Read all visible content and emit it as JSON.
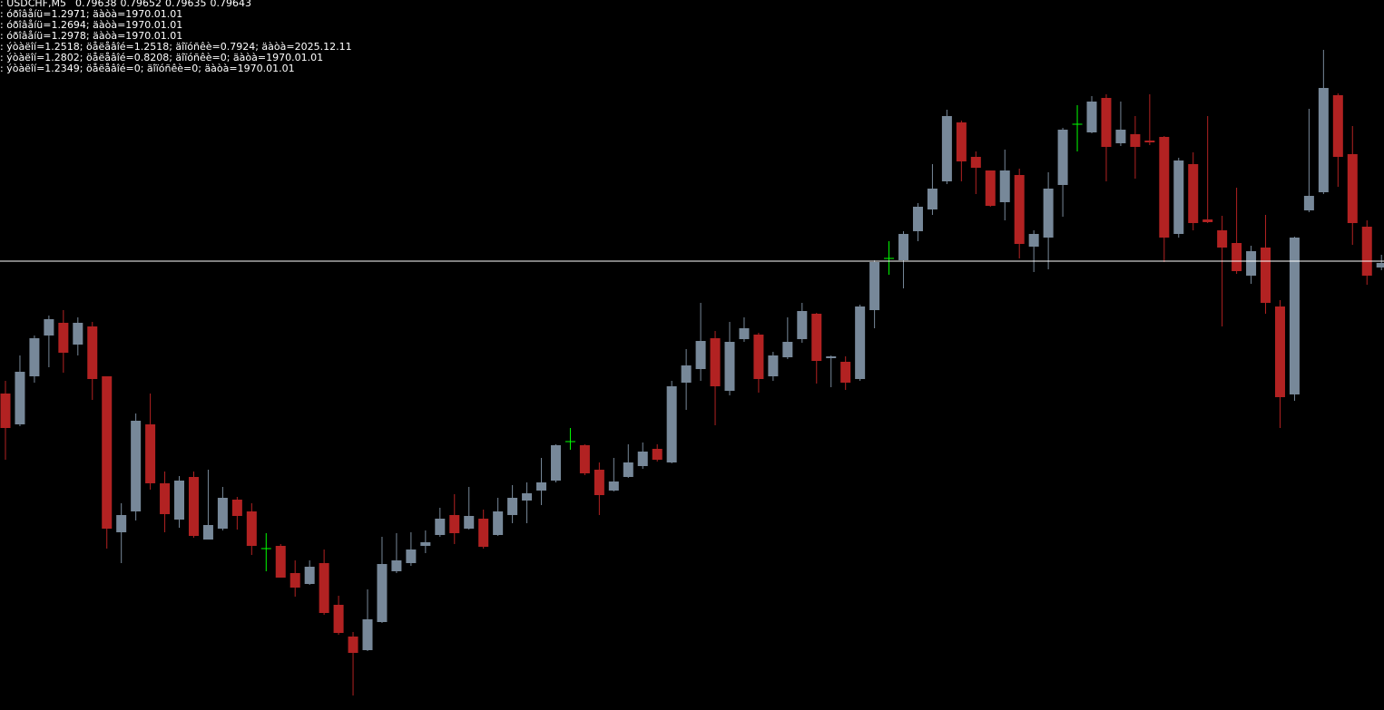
{
  "chart_data": {
    "type": "candlestick",
    "symbol": ": USDCHF,M5",
    "annotations": [
      ": óðîâåíü=1.2971; äàòà=1970.01.01",
      ": óðîâåíü=1.2694; äàòà=1970.01.01",
      ": óðîâåíü=1.2978; äàòà=1970.01.01",
      ": ýòàëîí=1.2518; öåëåâîé=1.2518; äîïóñêè=0.7924; äàòà=2025.12.11",
      ": ýòàëîí=1.2802; öåëåâîé=0.8208; äîïóñêè=0; äàòà=1970.01.01",
      ": ýòàëîí=1.2349; öåëåâîé=0; äîïóñêè=0; äàòà=1970.01.01"
    ],
    "open": [
      0.79499,
      0.79465,
      0.79518,
      0.79563,
      0.79577,
      0.79553,
      0.79573,
      0.79518,
      0.79346,
      0.79369,
      0.79465,
      0.794,
      0.7936,
      0.79407,
      0.79338,
      0.7935,
      0.79382,
      0.79369,
      0.79328,
      0.79331,
      0.79301,
      0.79289,
      0.79312,
      0.79266,
      0.79231,
      0.79216,
      0.79247,
      0.79303,
      0.79312,
      0.79331,
      0.79343,
      0.79365,
      0.7935,
      0.79361,
      0.79343,
      0.79365,
      0.79381,
      0.79392,
      0.79403,
      0.79446,
      0.79442,
      0.79415,
      0.79392,
      0.79407,
      0.79419,
      0.79438,
      0.79423,
      0.79511,
      0.79526,
      0.7956,
      0.79502,
      0.79559,
      0.79564,
      0.79518,
      0.79539,
      0.79559,
      0.79587,
      0.79538,
      0.79534,
      0.79515,
      0.79591,
      0.79648,
      0.79646,
      0.79678,
      0.79702,
      0.79733,
      0.79798,
      0.7976,
      0.79745,
      0.7971,
      0.7974,
      0.79661,
      0.79671,
      0.79729,
      0.79796,
      0.79787,
      0.79825,
      0.79775,
      0.79785,
      0.79778,
      0.79782,
      0.79675,
      0.79752,
      0.79691,
      0.79679,
      0.79665,
      0.79629,
      0.7966,
      0.79595,
      0.79498,
      0.79701,
      0.79721,
      0.79828,
      0.79763,
      0.79683,
      0.79638
    ],
    "high": [
      0.79513,
      0.79541,
      0.79563,
      0.79585,
      0.79591,
      0.79583,
      0.79578,
      0.79518,
      0.79378,
      0.79477,
      0.79499,
      0.79413,
      0.79408,
      0.79413,
      0.79415,
      0.79396,
      0.79385,
      0.79378,
      0.79345,
      0.79333,
      0.79315,
      0.79315,
      0.79327,
      0.79276,
      0.79236,
      0.79283,
      0.79341,
      0.79345,
      0.79346,
      0.79348,
      0.79373,
      0.79388,
      0.79396,
      0.79371,
      0.79384,
      0.79398,
      0.79401,
      0.79428,
      0.79443,
      0.79461,
      0.79443,
      0.79423,
      0.79428,
      0.79443,
      0.79445,
      0.79443,
      0.79513,
      0.79548,
      0.79599,
      0.79568,
      0.79578,
      0.79583,
      0.79566,
      0.79545,
      0.79583,
      0.79599,
      0.79588,
      0.79541,
      0.7954,
      0.79597,
      0.79646,
      0.79667,
      0.79678,
      0.79709,
      0.79752,
      0.79812,
      0.798,
      0.79766,
      0.79745,
      0.79768,
      0.79747,
      0.79679,
      0.79743,
      0.79792,
      0.79817,
      0.79827,
      0.79829,
      0.79821,
      0.79805,
      0.79829,
      0.79783,
      0.79759,
      0.79765,
      0.79805,
      0.79695,
      0.79726,
      0.79662,
      0.79696,
      0.79602,
      0.79672,
      0.79813,
      0.79878,
      0.7983,
      0.79794,
      0.7969,
      0.79652
    ],
    "low": [
      0.79426,
      0.79463,
      0.79511,
      0.79528,
      0.79522,
      0.79541,
      0.79492,
      0.79328,
      0.79312,
      0.79359,
      0.79393,
      0.79346,
      0.79351,
      0.7934,
      0.79338,
      0.79348,
      0.79349,
      0.79321,
      0.79303,
      0.79296,
      0.79275,
      0.79288,
      0.79255,
      0.79233,
      0.79166,
      0.79215,
      0.79246,
      0.79301,
      0.79309,
      0.79323,
      0.79341,
      0.79333,
      0.79349,
      0.79328,
      0.79342,
      0.79356,
      0.79356,
      0.79376,
      0.79401,
      0.79437,
      0.79409,
      0.79365,
      0.79391,
      0.79406,
      0.79416,
      0.79424,
      0.79422,
      0.79481,
      0.79513,
      0.79464,
      0.79497,
      0.79556,
      0.795,
      0.79513,
      0.79537,
      0.79555,
      0.7951,
      0.79506,
      0.79503,
      0.79513,
      0.79571,
      0.7963,
      0.79615,
      0.79667,
      0.79696,
      0.7973,
      0.79733,
      0.79719,
      0.79705,
      0.7969,
      0.79648,
      0.79633,
      0.79636,
      0.79694,
      0.79766,
      0.79786,
      0.79733,
      0.79772,
      0.79736,
      0.79773,
      0.79644,
      0.79671,
      0.79679,
      0.79687,
      0.79573,
      0.79631,
      0.7962,
      0.79587,
      0.79461,
      0.79491,
      0.79699,
      0.79719,
      0.79727,
      0.79663,
      0.79619,
      0.79635
    ],
    "close": [
      0.79461,
      0.79523,
      0.7956,
      0.79581,
      0.79544,
      0.79577,
      0.79515,
      0.7935,
      0.79365,
      0.79469,
      0.794,
      0.79366,
      0.79403,
      0.79342,
      0.79354,
      0.79384,
      0.79364,
      0.79331,
      0.79328,
      0.79296,
      0.79285,
      0.79308,
      0.79257,
      0.79235,
      0.79213,
      0.7925,
      0.79311,
      0.79315,
      0.79327,
      0.79335,
      0.79361,
      0.79345,
      0.79364,
      0.7933,
      0.79369,
      0.79384,
      0.79389,
      0.79401,
      0.79442,
      0.79446,
      0.79411,
      0.79387,
      0.79402,
      0.79423,
      0.79435,
      0.79426,
      0.79507,
      0.7953,
      0.79557,
      0.79507,
      0.79556,
      0.79571,
      0.79515,
      0.79541,
      0.79556,
      0.7959,
      0.79535,
      0.7954,
      0.79511,
      0.79595,
      0.79644,
      0.79648,
      0.79675,
      0.79705,
      0.79725,
      0.79805,
      0.79755,
      0.79748,
      0.79706,
      0.79745,
      0.79664,
      0.79675,
      0.79725,
      0.7979,
      0.79796,
      0.79821,
      0.79771,
      0.7979,
      0.79771,
      0.79776,
      0.79671,
      0.79756,
      0.79687,
      0.79688,
      0.7966,
      0.79634,
      0.79656,
      0.79599,
      0.79495,
      0.79671,
      0.79717,
      0.79836,
      0.7976,
      0.79687,
      0.79629,
      0.79643
    ],
    "ylim": [
      0.7915,
      0.79933
    ],
    "hline": 0.79645,
    "up_color": "#778899",
    "down_color": "#b22222",
    "doji_color": "#00ff00",
    "hline_color": "#ffffff",
    "text_color": "#ffffff",
    "background": "#000000"
  }
}
